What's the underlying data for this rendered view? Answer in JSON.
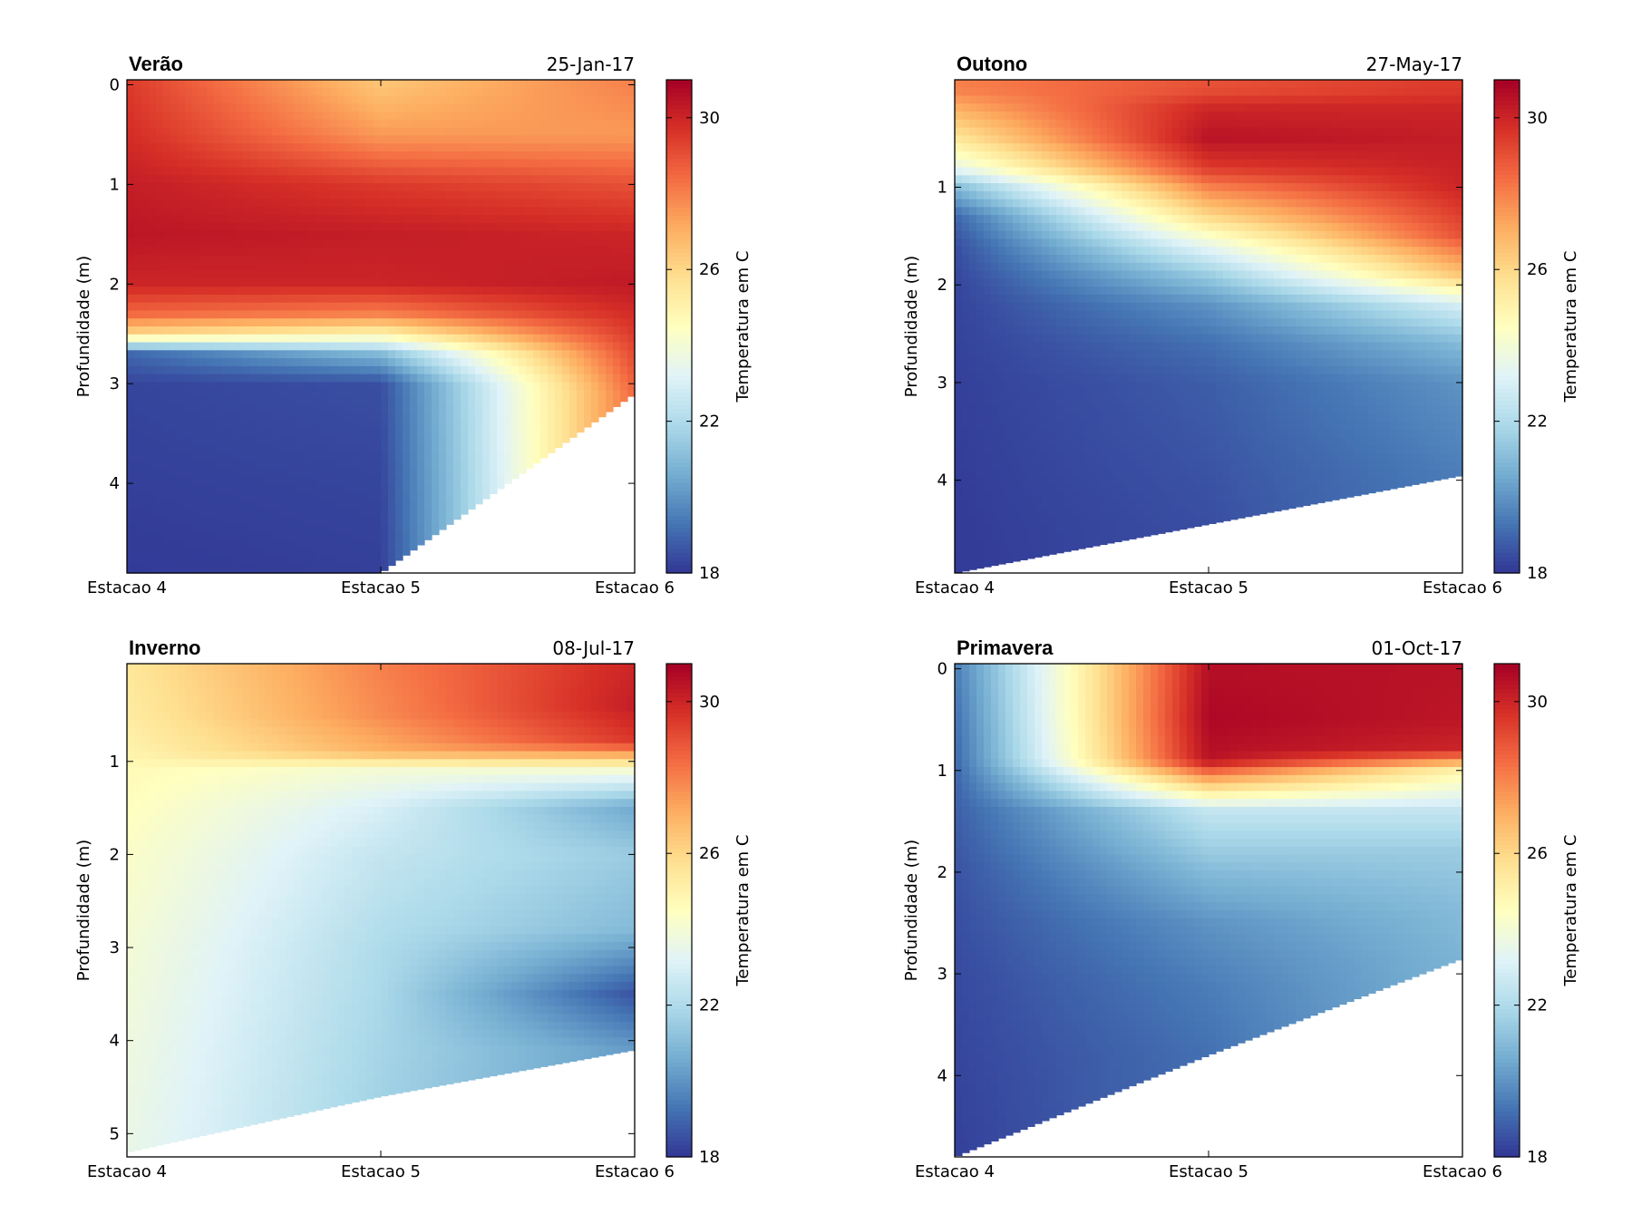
{
  "figure": {
    "colorbar_label": "Temperatura em C",
    "colorbar_ticks": [
      18,
      22,
      26,
      30
    ],
    "colorbar_range": [
      18,
      31
    ],
    "colormap": [
      "#313695",
      "#4575b4",
      "#74add1",
      "#abd9e9",
      "#e0f3f8",
      "#ffffbf",
      "#fee090",
      "#fdae61",
      "#f46d43",
      "#d73027",
      "#a50026"
    ]
  },
  "chart_data": [
    {
      "type": "heatmap",
      "title": "Verão",
      "date": "25-Jan-17",
      "xlabel": "",
      "ylabel": "Profundidade (m)",
      "x_tick_labels": [
        "Estacao 4",
        "Estacao 5",
        "Estacao 6"
      ],
      "y_ticks": [
        0,
        1,
        2,
        3,
        4
      ],
      "ylim": [
        4.9,
        -0.05
      ],
      "colorbar_label": "Temperatura em C",
      "zlim": [
        18,
        31
      ],
      "bottom_depth_m": [
        4.9,
        4.9,
        3.1
      ],
      "profiles": [
        {
          "station": "Estacao 4",
          "depth_m": [
            0,
            0.5,
            1.0,
            1.5,
            2.0,
            2.3,
            2.5,
            2.7,
            3.0,
            4.0,
            4.9
          ],
          "temp_c": [
            29.5,
            29.8,
            30.2,
            30.4,
            30.0,
            28.5,
            26.0,
            19.0,
            18.3,
            18.2,
            18.1
          ]
        },
        {
          "station": "Estacao 5",
          "depth_m": [
            0,
            0.5,
            1.0,
            1.5,
            2.0,
            2.3,
            2.5,
            2.7,
            3.0,
            4.0,
            4.9
          ],
          "temp_c": [
            26.5,
            27.5,
            29.5,
            30.2,
            30.0,
            28.0,
            25.0,
            21.0,
            18.5,
            18.3,
            18.2
          ]
        },
        {
          "station": "Estacao 6",
          "depth_m": [
            0,
            0.5,
            1.0,
            1.5,
            2.0,
            2.5,
            3.1
          ],
          "temp_c": [
            28.0,
            27.5,
            29.0,
            30.0,
            30.3,
            29.5,
            28.5
          ]
        }
      ]
    },
    {
      "type": "heatmap",
      "title": "Outono",
      "date": "27-May-17",
      "xlabel": "",
      "ylabel": "Profundidade (m)",
      "x_tick_labels": [
        "Estacao 4",
        "Estacao 5",
        "Estacao 6"
      ],
      "y_ticks": [
        1,
        2,
        3,
        4
      ],
      "ylim": [
        4.95,
        -0.1
      ],
      "colorbar_label": "Temperatura em C",
      "zlim": [
        18,
        31
      ],
      "bottom_depth_m": [
        4.95,
        4.45,
        3.95
      ],
      "profiles": [
        {
          "station": "Estacao 4",
          "depth_m": [
            0,
            0.2,
            0.5,
            0.8,
            1.0,
            1.3,
            1.6,
            2.0,
            3.0,
            4.95
          ],
          "temp_c": [
            28.0,
            27.0,
            25.5,
            23.5,
            21.0,
            19.0,
            18.5,
            18.3,
            18.2,
            18.1
          ]
        },
        {
          "station": "Estacao 5",
          "depth_m": [
            0,
            0.2,
            0.5,
            0.8,
            1.0,
            1.3,
            1.6,
            1.9,
            2.2,
            2.6,
            3.0,
            4.45
          ],
          "temp_c": [
            29.0,
            30.0,
            30.5,
            29.5,
            28.0,
            26.0,
            23.5,
            21.5,
            20.0,
            19.2,
            18.8,
            18.5
          ]
        },
        {
          "station": "Estacao 6",
          "depth_m": [
            0,
            0.2,
            0.5,
            1.0,
            1.5,
            1.9,
            2.2,
            2.6,
            3.0,
            3.95
          ],
          "temp_c": [
            29.5,
            30.0,
            30.2,
            30.0,
            29.0,
            26.5,
            23.0,
            21.0,
            20.0,
            19.5
          ]
        }
      ]
    },
    {
      "type": "heatmap",
      "title": "Inverno",
      "date": "08-Jul-17",
      "xlabel": "",
      "ylabel": "Profundidade (m)",
      "x_tick_labels": [
        "Estacao 4",
        "Estacao 5",
        "Estacao 6"
      ],
      "y_ticks": [
        1,
        2,
        3,
        4,
        5
      ],
      "ylim": [
        5.25,
        -0.05
      ],
      "colorbar_label": "Temperatura em C",
      "zlim": [
        18,
        31
      ],
      "bottom_depth_m": [
        5.2,
        4.6,
        4.1
      ],
      "profiles": [
        {
          "station": "Estacao 4",
          "depth_m": [
            0,
            0.5,
            0.9,
            1.1,
            2.0,
            3.0,
            4.0,
            5.2
          ],
          "temp_c": [
            25.5,
            25.3,
            25.0,
            24.7,
            24.3,
            24.0,
            23.8,
            23.6
          ]
        },
        {
          "station": "Estacao 5",
          "depth_m": [
            0,
            0.5,
            0.9,
            1.1,
            1.5,
            2.0,
            3.0,
            4.0,
            4.6
          ],
          "temp_c": [
            28.0,
            27.8,
            27.0,
            24.0,
            23.0,
            22.5,
            22.0,
            21.8,
            21.7
          ]
        },
        {
          "station": "Estacao 6",
          "depth_m": [
            0,
            0.4,
            0.8,
            1.1,
            1.5,
            2.0,
            2.8,
            3.5,
            4.1
          ],
          "temp_c": [
            30.0,
            30.2,
            29.5,
            24.0,
            20.5,
            21.5,
            21.0,
            18.6,
            20.2
          ]
        }
      ]
    },
    {
      "type": "heatmap",
      "title": "Primavera",
      "date": "01-Oct-17",
      "xlabel": "",
      "ylabel": "Profundidade (m)",
      "x_tick_labels": [
        "Estacao 4",
        "Estacao 5",
        "Estacao 6"
      ],
      "y_ticks": [
        0,
        1,
        2,
        3,
        4
      ],
      "ylim": [
        4.8,
        -0.05
      ],
      "colorbar_label": "Temperatura em C",
      "zlim": [
        18,
        31
      ],
      "bottom_depth_m": [
        4.8,
        3.8,
        2.85
      ],
      "profiles": [
        {
          "station": "Estacao 4",
          "depth_m": [
            0,
            0.5,
            1.0,
            1.5,
            2.0,
            3.0,
            4.8
          ],
          "temp_c": [
            19.5,
            19.2,
            19.0,
            18.8,
            18.6,
            18.4,
            18.2
          ]
        },
        {
          "station": "Estacao 5",
          "depth_m": [
            0,
            0.5,
            0.9,
            1.1,
            1.4,
            2.0,
            2.5,
            3.1,
            3.8
          ],
          "temp_c": [
            30.6,
            30.8,
            30.5,
            27.0,
            22.5,
            21.0,
            20.0,
            19.5,
            19.2
          ]
        },
        {
          "station": "Estacao 6",
          "depth_m": [
            0,
            0.5,
            0.8,
            1.0,
            1.4,
            1.8,
            2.4,
            2.85
          ],
          "temp_c": [
            30.5,
            30.4,
            30.0,
            25.0,
            22.5,
            21.5,
            21.0,
            20.8
          ]
        }
      ]
    }
  ]
}
